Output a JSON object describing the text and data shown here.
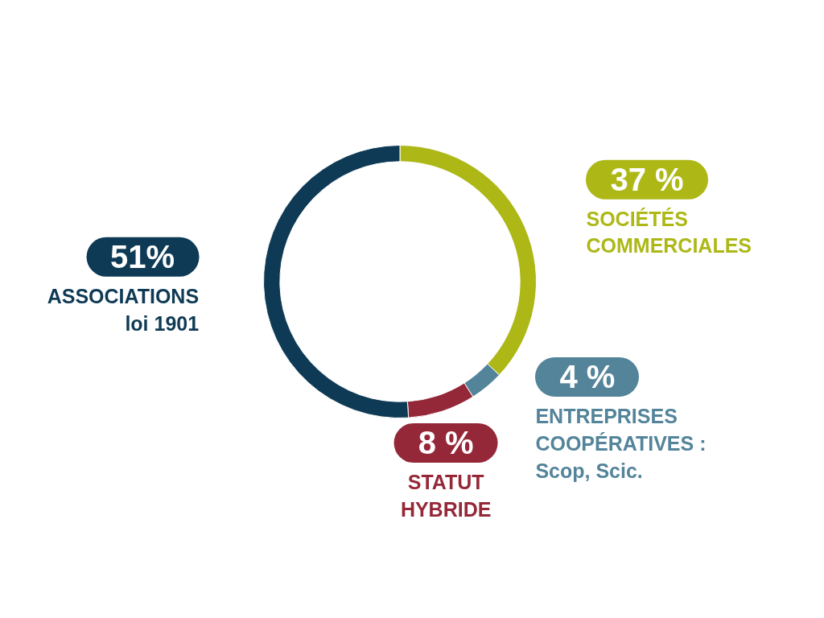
{
  "chart_data": {
    "type": "donut",
    "categories": [
      "SOCIÉTÉS\nCOMMERCIALES",
      "ENTREPRISES\nCOOPÉRATIVES :\nScop, Scic.",
      "STATUT\nHYBRIDE",
      "ASSOCIATIONS\nloi 1901"
    ],
    "values": [
      37,
      4,
      8,
      51
    ],
    "colors": [
      "#adb817",
      "#53849a",
      "#952838",
      "#0e3a55"
    ],
    "value_labels": [
      "37 %",
      "4 %",
      "8 %",
      "51%"
    ],
    "legend": false
  }
}
